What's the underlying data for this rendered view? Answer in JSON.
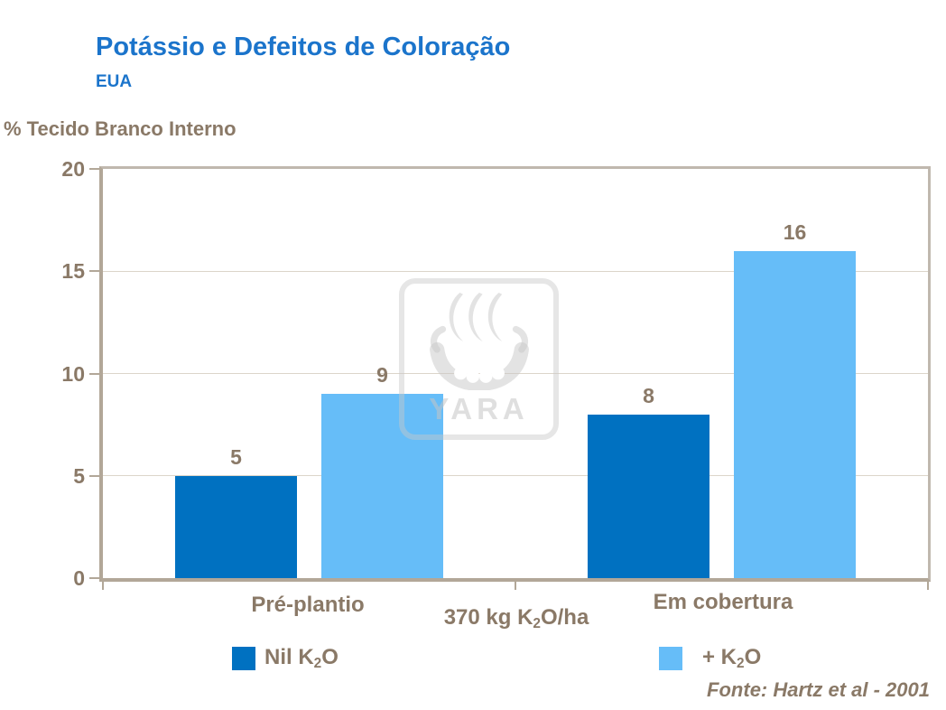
{
  "header": {
    "title": "Potássio e Defeitos de Coloração",
    "subtitle": "EUA"
  },
  "chart_data": {
    "type": "bar",
    "title": "Potássio e Defeitos de Coloração",
    "subtitle": "EUA",
    "ylabel": "% Tecido Branco Interno",
    "xlabel": "",
    "ylim": [
      0,
      20
    ],
    "yticks": [
      0,
      5,
      10,
      15,
      20
    ],
    "grid": "horizontal",
    "legend_position": "bottom",
    "categories": [
      "Pré-plantio",
      "Em cobertura"
    ],
    "series": [
      {
        "name": "Nil K2O",
        "color": "#0071c1",
        "values": [
          5,
          8
        ]
      },
      {
        "name": "+ K2O",
        "color": "#66bdf8",
        "values": [
          9,
          16
        ]
      }
    ],
    "annotation": "370 kg K2O/ha",
    "source": "Fonte: Hartz et al - 2001"
  },
  "annotation_parts": {
    "pre": "370 kg K",
    "sub": "2",
    "post": "O/ha"
  },
  "legend": {
    "items": [
      {
        "pre": "Nil K",
        "sub": "2",
        "post": "O",
        "color": "#0071c1"
      },
      {
        "pre": "+ K",
        "sub": "2",
        "post": "O",
        "color": "#66bdf8"
      }
    ]
  },
  "footer": {
    "source": "Fonte: Hartz et al - 2001"
  },
  "watermark": {
    "name": "yara-logo",
    "text": "YARA"
  },
  "colors": {
    "title_blue": "#1b74cb",
    "text_brown": "#8a7967",
    "axis": "#b2a798",
    "gridline": "#dcd5ca",
    "bar_dark": "#0071c1",
    "bar_light": "#66bdf8"
  }
}
